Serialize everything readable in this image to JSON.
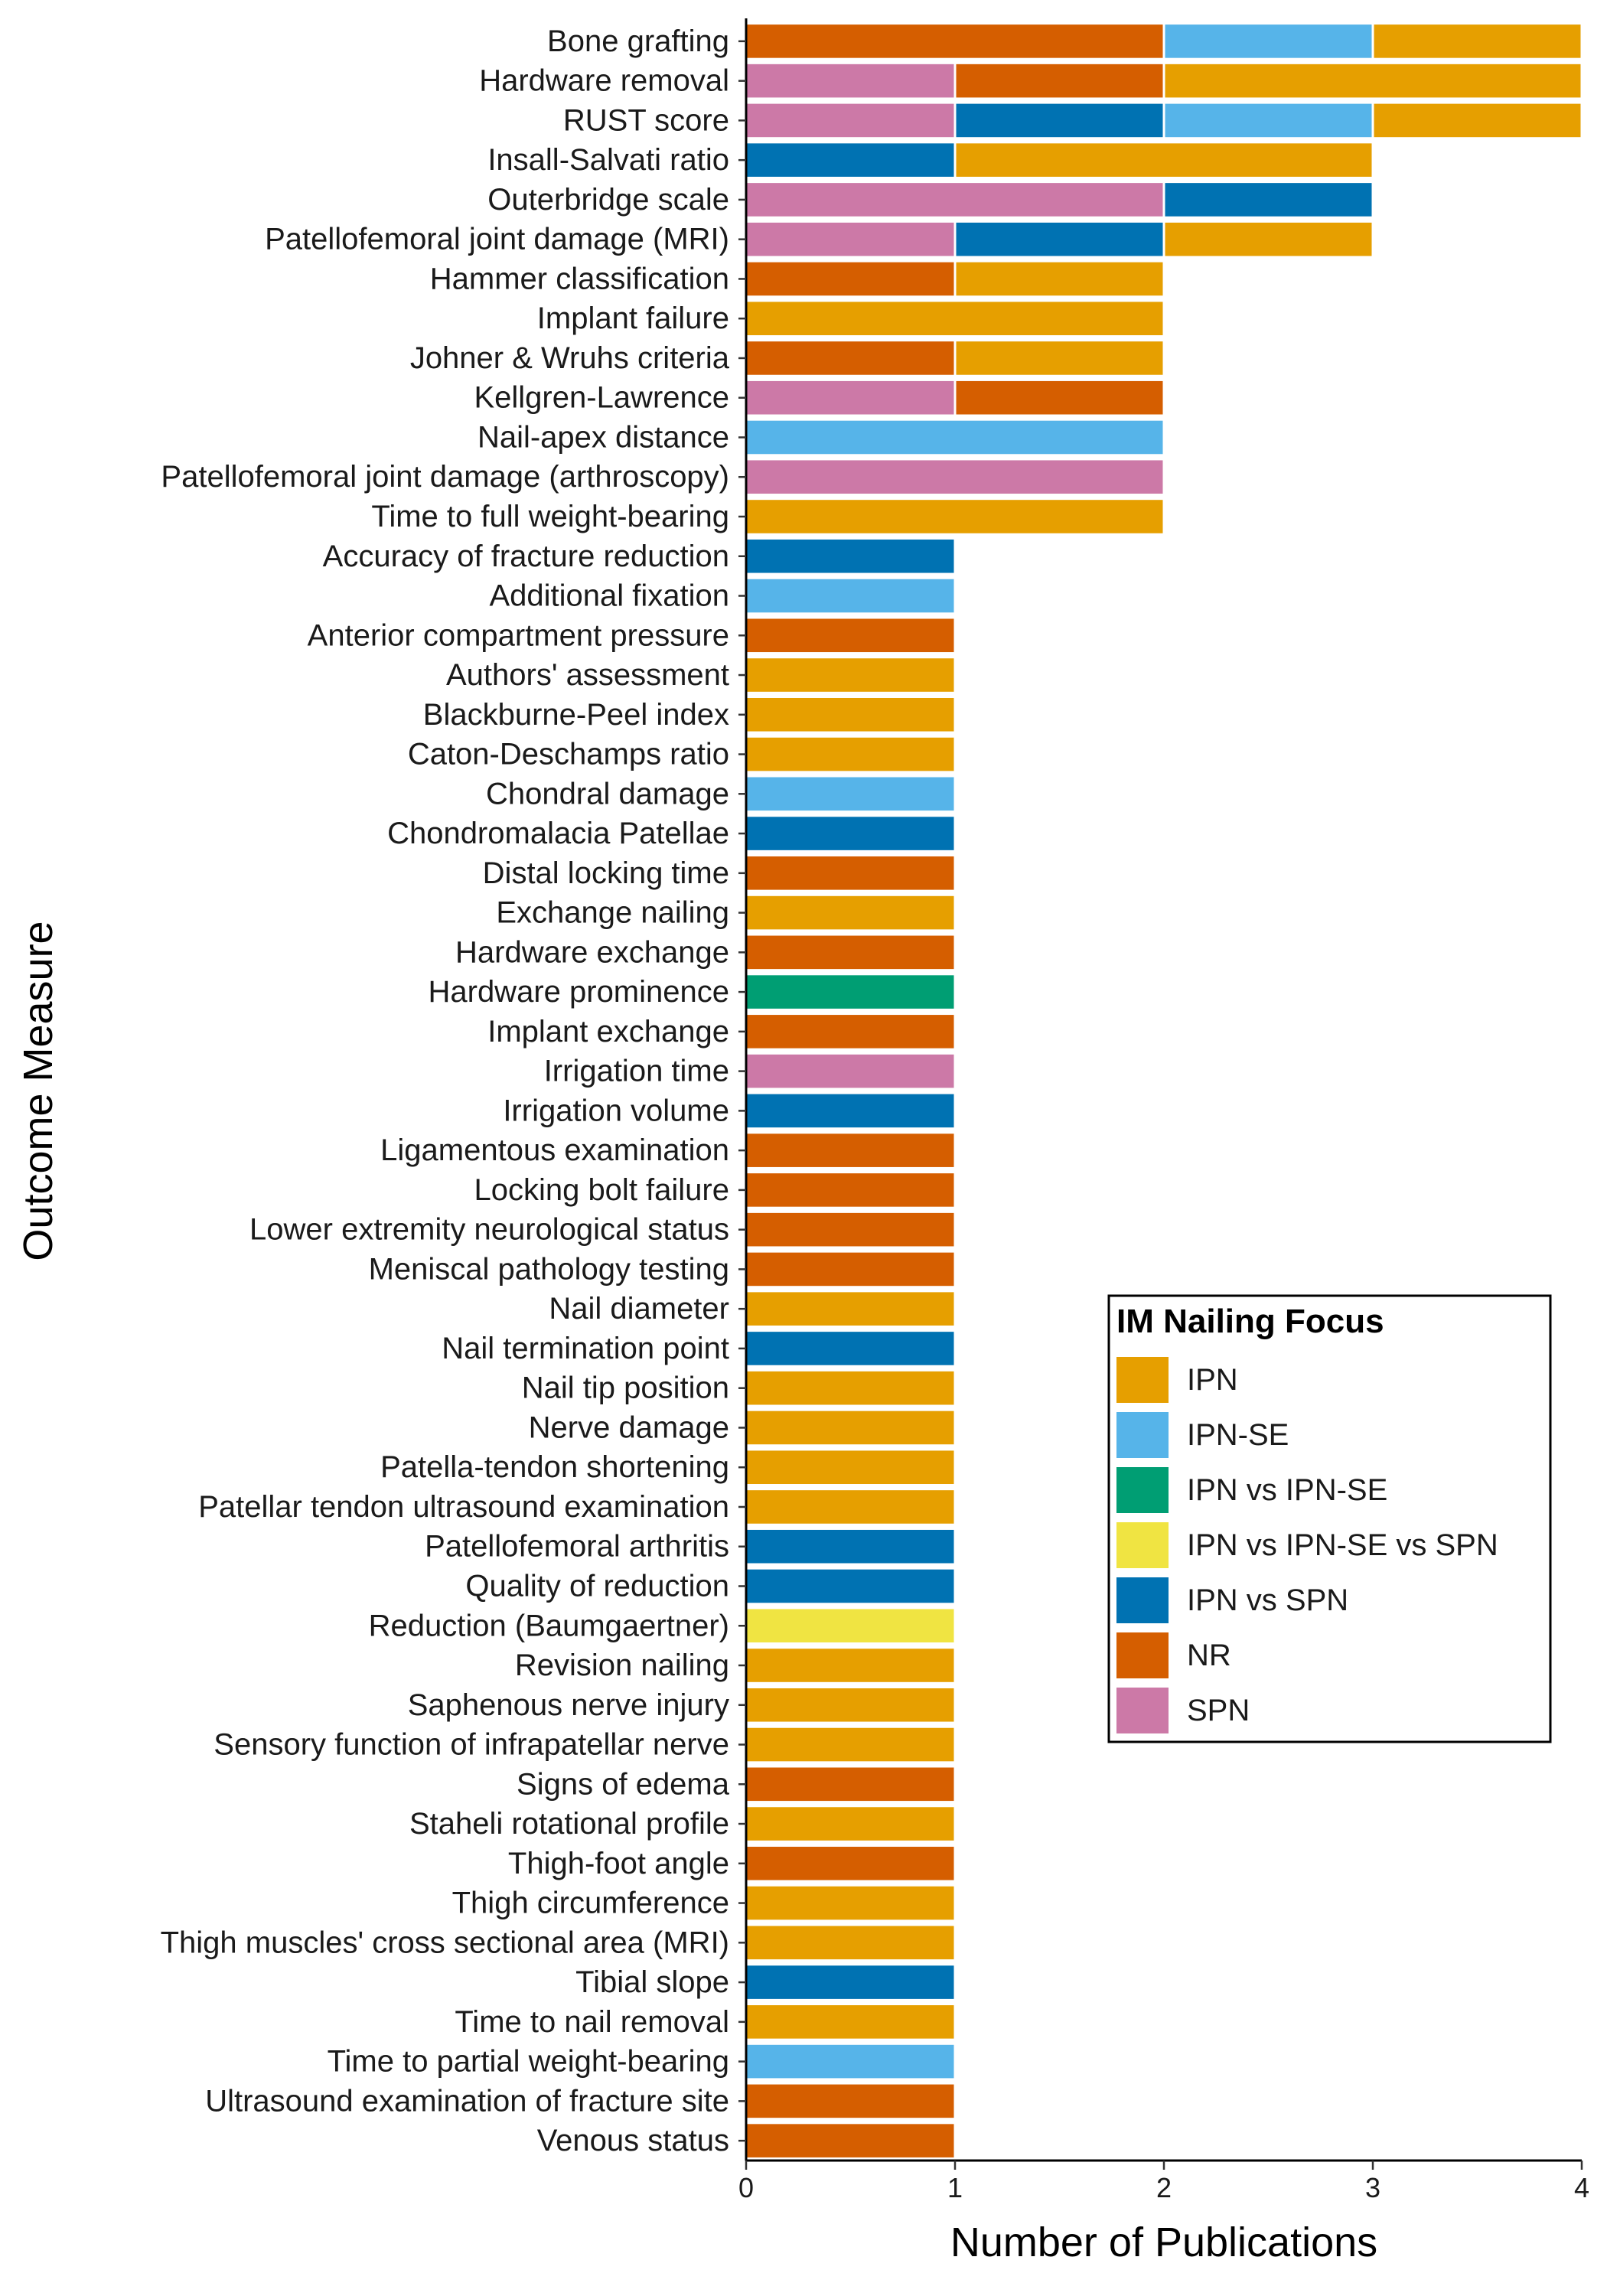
{
  "chart_data": {
    "type": "bar",
    "orientation": "horizontal",
    "stacked": true,
    "xlabel": "Number of Publications",
    "ylabel": "Outcome Measure",
    "xlim": [
      0,
      4
    ],
    "xticks": [
      "0",
      "1",
      "2",
      "3",
      "4"
    ],
    "grid": false,
    "legend": {
      "title": "IM Nailing Focus",
      "placement": "right",
      "entries": [
        {
          "name": "IPN",
          "color": "#E69F00"
        },
        {
          "name": "IPN-SE",
          "color": "#56B4E9"
        },
        {
          "name": "IPN vs IPN-SE",
          "color": "#009E73"
        },
        {
          "name": "IPN vs IPN-SE vs SPN",
          "color": "#F0E442"
        },
        {
          "name": "IPN vs SPN",
          "color": "#0072B2"
        },
        {
          "name": "NR",
          "color": "#D55E00"
        },
        {
          "name": "SPN",
          "color": "#CC79A7"
        }
      ]
    },
    "categories": [
      "Bone grafting",
      "Hardware removal",
      "RUST score",
      "Insall-Salvati ratio",
      "Outerbridge scale",
      "Patellofemoral joint damage (MRI)",
      "Hammer classification",
      "Implant failure",
      "Johner & Wruhs criteria",
      "Kellgren-Lawrence",
      "Nail-apex distance",
      "Patellofemoral joint damage (arthroscopy)",
      "Time to full weight-bearing",
      "Accuracy of fracture reduction",
      "Additional fixation",
      "Anterior compartment pressure",
      "Authors' assessment",
      "Blackburne-Peel index",
      "Caton-Deschamps ratio",
      "Chondral damage",
      "Chondromalacia Patellae",
      "Distal locking time",
      "Exchange nailing",
      "Hardware exchange",
      "Hardware prominence",
      "Implant exchange",
      "Irrigation time",
      "Irrigation volume",
      "Ligamentous examination",
      "Locking bolt failure",
      "Lower extremity neurological status",
      "Meniscal pathology testing",
      "Nail diameter",
      "Nail termination point",
      "Nail tip position",
      "Nerve damage",
      "Patella-tendon shortening",
      "Patellar tendon ultrasound examination",
      "Patellofemoral arthritis",
      "Quality of reduction",
      "Reduction (Baumgaertner)",
      "Revision nailing",
      "Saphenous nerve injury",
      "Sensory function of infrapatellar nerve",
      "Signs of edema",
      "Staheli rotational profile",
      "Thigh-foot angle",
      "Thigh circumference",
      "Thigh muscles' cross sectional area (MRI)",
      "Tibial slope",
      "Time to nail removal",
      "Time to partial weight-bearing",
      "Ultrasound examination of fracture site",
      "Venous status"
    ],
    "stacks": [
      [
        {
          "group": "NR",
          "value": 2
        },
        {
          "group": "IPN-SE",
          "value": 1
        },
        {
          "group": "IPN",
          "value": 1
        }
      ],
      [
        {
          "group": "SPN",
          "value": 1
        },
        {
          "group": "NR",
          "value": 1
        },
        {
          "group": "IPN",
          "value": 2
        }
      ],
      [
        {
          "group": "SPN",
          "value": 1
        },
        {
          "group": "IPN vs SPN",
          "value": 1
        },
        {
          "group": "IPN-SE",
          "value": 1
        },
        {
          "group": "IPN",
          "value": 1
        }
      ],
      [
        {
          "group": "IPN vs SPN",
          "value": 1
        },
        {
          "group": "IPN",
          "value": 2
        }
      ],
      [
        {
          "group": "SPN",
          "value": 2
        },
        {
          "group": "IPN vs SPN",
          "value": 1
        }
      ],
      [
        {
          "group": "SPN",
          "value": 1
        },
        {
          "group": "IPN vs SPN",
          "value": 1
        },
        {
          "group": "IPN",
          "value": 1
        }
      ],
      [
        {
          "group": "NR",
          "value": 1
        },
        {
          "group": "IPN",
          "value": 1
        }
      ],
      [
        {
          "group": "IPN",
          "value": 2
        }
      ],
      [
        {
          "group": "NR",
          "value": 1
        },
        {
          "group": "IPN",
          "value": 1
        }
      ],
      [
        {
          "group": "SPN",
          "value": 1
        },
        {
          "group": "NR",
          "value": 1
        }
      ],
      [
        {
          "group": "IPN-SE",
          "value": 2
        }
      ],
      [
        {
          "group": "SPN",
          "value": 2
        }
      ],
      [
        {
          "group": "IPN",
          "value": 2
        }
      ],
      [
        {
          "group": "IPN vs SPN",
          "value": 1
        }
      ],
      [
        {
          "group": "IPN-SE",
          "value": 1
        }
      ],
      [
        {
          "group": "NR",
          "value": 1
        }
      ],
      [
        {
          "group": "IPN",
          "value": 1
        }
      ],
      [
        {
          "group": "IPN",
          "value": 1
        }
      ],
      [
        {
          "group": "IPN",
          "value": 1
        }
      ],
      [
        {
          "group": "IPN-SE",
          "value": 1
        }
      ],
      [
        {
          "group": "IPN vs SPN",
          "value": 1
        }
      ],
      [
        {
          "group": "NR",
          "value": 1
        }
      ],
      [
        {
          "group": "IPN",
          "value": 1
        }
      ],
      [
        {
          "group": "NR",
          "value": 1
        }
      ],
      [
        {
          "group": "IPN vs IPN-SE",
          "value": 1
        }
      ],
      [
        {
          "group": "NR",
          "value": 1
        }
      ],
      [
        {
          "group": "SPN",
          "value": 1
        }
      ],
      [
        {
          "group": "IPN vs SPN",
          "value": 1
        }
      ],
      [
        {
          "group": "NR",
          "value": 1
        }
      ],
      [
        {
          "group": "NR",
          "value": 1
        }
      ],
      [
        {
          "group": "NR",
          "value": 1
        }
      ],
      [
        {
          "group": "NR",
          "value": 1
        }
      ],
      [
        {
          "group": "IPN",
          "value": 1
        }
      ],
      [
        {
          "group": "IPN vs SPN",
          "value": 1
        }
      ],
      [
        {
          "group": "IPN",
          "value": 1
        }
      ],
      [
        {
          "group": "IPN",
          "value": 1
        }
      ],
      [
        {
          "group": "IPN",
          "value": 1
        }
      ],
      [
        {
          "group": "IPN",
          "value": 1
        }
      ],
      [
        {
          "group": "IPN vs SPN",
          "value": 1
        }
      ],
      [
        {
          "group": "IPN vs SPN",
          "value": 1
        }
      ],
      [
        {
          "group": "IPN vs IPN-SE vs SPN",
          "value": 1
        }
      ],
      [
        {
          "group": "IPN",
          "value": 1
        }
      ],
      [
        {
          "group": "IPN",
          "value": 1
        }
      ],
      [
        {
          "group": "IPN",
          "value": 1
        }
      ],
      [
        {
          "group": "NR",
          "value": 1
        }
      ],
      [
        {
          "group": "IPN",
          "value": 1
        }
      ],
      [
        {
          "group": "NR",
          "value": 1
        }
      ],
      [
        {
          "group": "IPN",
          "value": 1
        }
      ],
      [
        {
          "group": "IPN",
          "value": 1
        }
      ],
      [
        {
          "group": "IPN vs SPN",
          "value": 1
        }
      ],
      [
        {
          "group": "IPN",
          "value": 1
        }
      ],
      [
        {
          "group": "IPN-SE",
          "value": 1
        }
      ],
      [
        {
          "group": "NR",
          "value": 1
        }
      ],
      [
        {
          "group": "NR",
          "value": 1
        }
      ]
    ]
  }
}
